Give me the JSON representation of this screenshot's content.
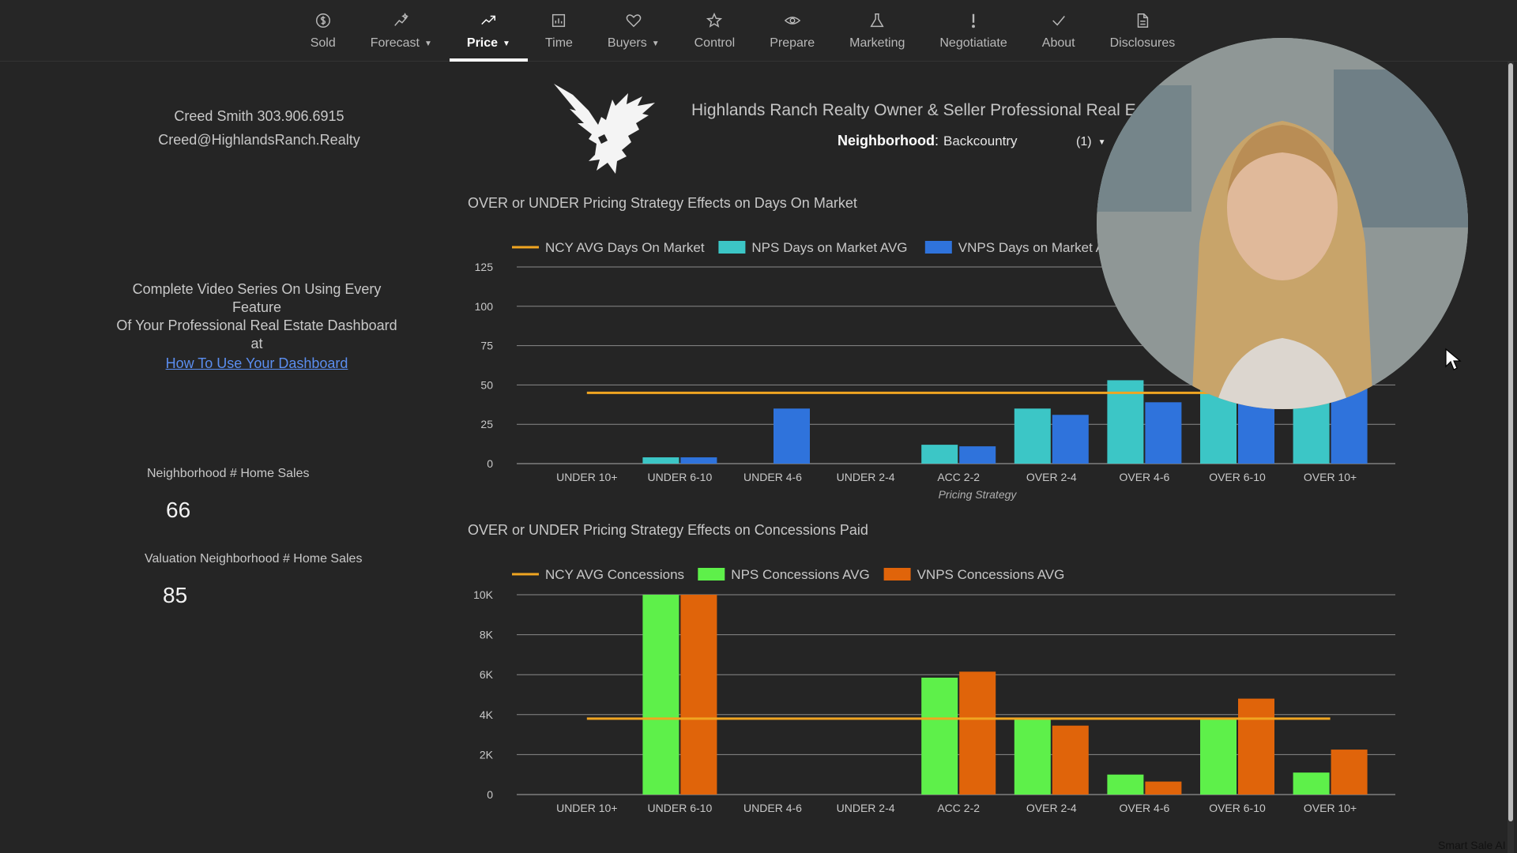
{
  "nav": {
    "items": [
      {
        "label": "Sold",
        "icon": "dollar-circle-icon",
        "caret": false,
        "active": false
      },
      {
        "label": "Forecast",
        "icon": "sparkle-trend-icon",
        "caret": true,
        "active": false
      },
      {
        "label": "Price",
        "icon": "trending-up-icon",
        "caret": true,
        "active": true
      },
      {
        "label": "Time",
        "icon": "calendar-chart-icon",
        "caret": false,
        "active": false
      },
      {
        "label": "Buyers",
        "icon": "heart-icon",
        "caret": true,
        "active": false
      },
      {
        "label": "Control",
        "icon": "star-icon",
        "caret": false,
        "active": false
      },
      {
        "label": "Prepare",
        "icon": "eye-icon",
        "caret": false,
        "active": false
      },
      {
        "label": "Marketing",
        "icon": "flask-icon",
        "caret": false,
        "active": false
      },
      {
        "label": "Negotiatiate",
        "icon": "exclamation-icon",
        "caret": false,
        "active": false
      },
      {
        "label": "About",
        "icon": "check-icon",
        "caret": false,
        "active": false
      },
      {
        "label": "Disclosures",
        "icon": "document-icon",
        "caret": false,
        "active": false
      }
    ]
  },
  "agent": {
    "name_phone": "Creed Smith 303.906.6915",
    "email": "Creed@HighlandsRanch.Realty"
  },
  "promo": {
    "line1": "Complete Video Series On Using Every Feature",
    "line2": "Of Your Professional Real Estate Dashboard at",
    "link": "How To Use Your Dashboard"
  },
  "stats": {
    "home_sales_label": "Neighborhood # Home Sales",
    "home_sales_value": "66",
    "valuation_label": "Valuation Neighborhood # Home Sales",
    "valuation_value": "85"
  },
  "header": {
    "brand_title": "Highlands Ranch Realty Owner & Seller Professional Real E",
    "neighborhood_key": "Neighborhood",
    "neighborhood_value": "Backcountry",
    "neighborhood_count": "(1)"
  },
  "colors": {
    "avg_line": "#f0a521",
    "nps_dom": "#3cc6c6",
    "vnps_dom": "#2f73dc",
    "nps_con": "#5ef04a",
    "vnps_con": "#e0640a",
    "grid": "#8a8a8a",
    "axis_text": "#c8c8c8"
  },
  "chart_data": [
    {
      "type": "bar",
      "title": "OVER or UNDER Pricing Strategy Effects on Days On Market",
      "xlabel": "Pricing Strategy",
      "ylabel": "",
      "categories": [
        "UNDER 10+",
        "UNDER 6-10",
        "UNDER 4-6",
        "UNDER 2-4",
        "ACC 2-2",
        "OVER 2-4",
        "OVER 4-6",
        "OVER 6-10",
        "OVER 10+"
      ],
      "ylim": [
        0,
        125
      ],
      "yticks": [
        0,
        25,
        50,
        75,
        100,
        125
      ],
      "ytick_labels": [
        "0",
        "25",
        "50",
        "75",
        "100",
        "125"
      ],
      "series": [
        {
          "name": "NCY AVG Days On Market",
          "kind": "line",
          "values": [
            45,
            45,
            45,
            45,
            45,
            45,
            45,
            45,
            45
          ]
        },
        {
          "name": "NPS Days on Market AVG",
          "kind": "bar",
          "values": [
            0,
            4,
            0,
            0,
            12,
            35,
            53,
            55,
            58
          ]
        },
        {
          "name": "VNPS Days on Market AV",
          "kind": "bar",
          "values": [
            0,
            4,
            35,
            0,
            11,
            31,
            39,
            52,
            60
          ]
        }
      ],
      "legend": "top"
    },
    {
      "type": "bar",
      "title": "OVER or UNDER Pricing Strategy Effects on Concessions Paid",
      "xlabel": "",
      "ylabel": "",
      "categories": [
        "UNDER 10+",
        "UNDER 6-10",
        "UNDER 4-6",
        "UNDER 2-4",
        "ACC 2-2",
        "OVER 2-4",
        "OVER 4-6",
        "OVER 6-10",
        "OVER 10+"
      ],
      "ylim": [
        0,
        10000
      ],
      "yticks": [
        0,
        2000,
        4000,
        6000,
        8000,
        10000
      ],
      "ytick_labels": [
        "0",
        "2K",
        "4K",
        "6K",
        "8K",
        "10K"
      ],
      "series": [
        {
          "name": "NCY AVG Concessions",
          "kind": "line",
          "values": [
            3800,
            3800,
            3800,
            3800,
            3800,
            3800,
            3800,
            3800,
            3800
          ]
        },
        {
          "name": "NPS Concessions AVG",
          "kind": "bar",
          "values": [
            0,
            10000,
            0,
            0,
            5850,
            3800,
            1000,
            3800,
            1100
          ]
        },
        {
          "name": "VNPS Concessions AVG",
          "kind": "bar",
          "values": [
            0,
            10000,
            0,
            0,
            6150,
            3450,
            650,
            4800,
            2250
          ]
        }
      ],
      "legend": "top"
    }
  ],
  "overlay": {
    "watermark": "Smart Sale AI"
  }
}
